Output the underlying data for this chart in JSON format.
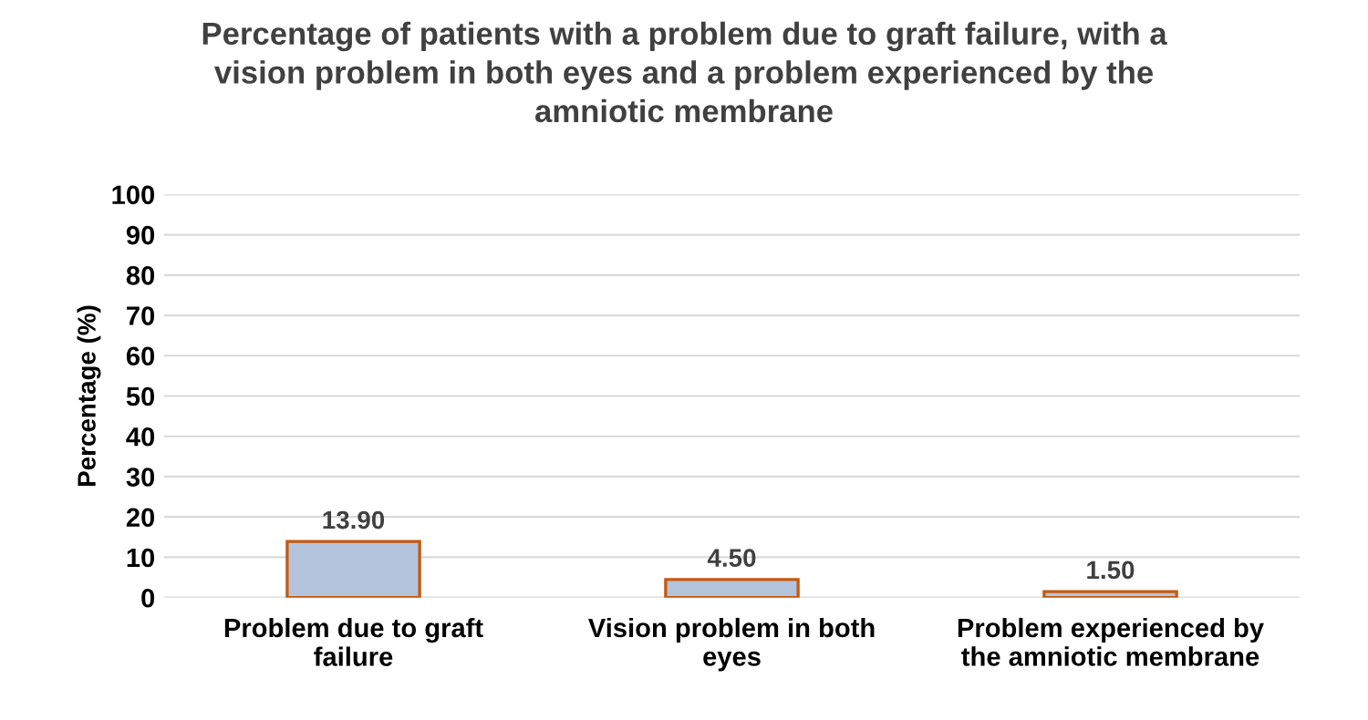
{
  "chart_data": {
    "type": "bar",
    "title": "Percentage of patients with a problem due to graft failure, with a vision problem in both eyes and a problem experienced by the amniotic membrane",
    "ylabel": "Percentage (%)",
    "categories": [
      "Problem due to graft failure",
      "Vision problem in both eyes",
      "Problem experienced by the amniotic membrane"
    ],
    "values": [
      13.9,
      4.5,
      1.5
    ],
    "value_labels": [
      "13.90",
      "4.50",
      "1.50"
    ],
    "color": "#b4c4dc",
    "ylim": [
      0,
      100
    ],
    "yticks": [
      0,
      10,
      20,
      30,
      40,
      50,
      60,
      70,
      80,
      90,
      100
    ],
    "grid": "y",
    "legend": false
  }
}
